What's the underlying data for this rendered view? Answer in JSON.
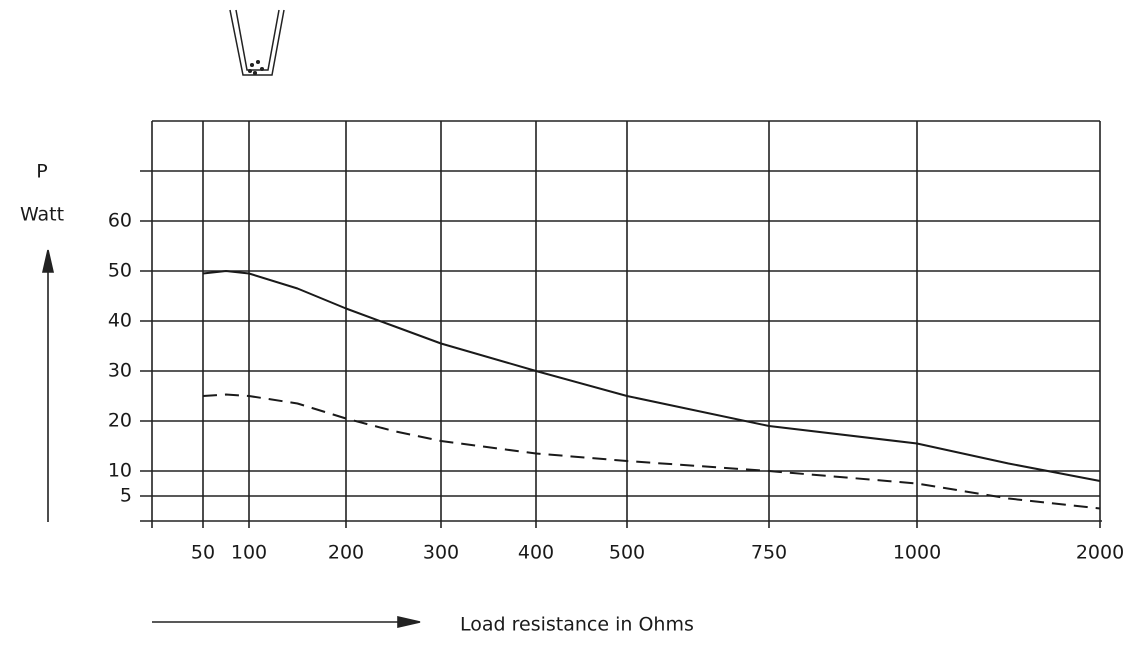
{
  "chart_data": {
    "type": "line",
    "y_label_symbol": "P",
    "y_label_unit": "Watt",
    "x_label": "Load resistance in Ohms",
    "x": [
      50,
      75,
      100,
      150,
      200,
      250,
      300,
      400,
      500,
      750,
      1000,
      1500,
      2000
    ],
    "series": [
      {
        "color": "#1a1a1a",
        "dash": "solid",
        "values": [
          49.5,
          50,
          49.5,
          46.5,
          42.5,
          39,
          35.5,
          30,
          25,
          19,
          15.5,
          11.5,
          8
        ]
      },
      {
        "color": "#1a1a1a",
        "dash": "dashed",
        "values": [
          25,
          25.3,
          25,
          23.5,
          20.5,
          18,
          16,
          13.5,
          12,
          10,
          7.5,
          4.5,
          2.5
        ]
      }
    ],
    "xticks": [
      50,
      100,
      200,
      300,
      400,
      500,
      750,
      1000,
      2000
    ],
    "ylim": [
      0,
      80
    ],
    "yticks": [
      5,
      10,
      20,
      30,
      40,
      50,
      60
    ],
    "grid": true
  }
}
